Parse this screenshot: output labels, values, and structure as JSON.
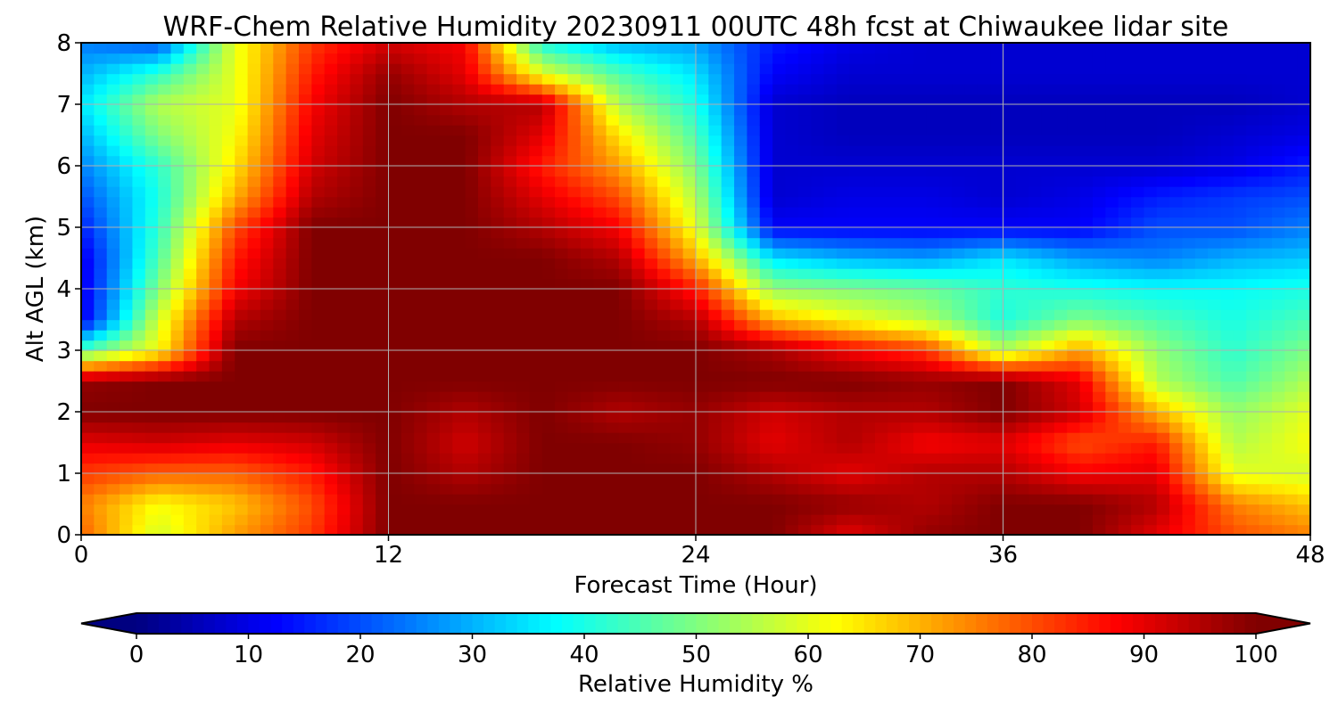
{
  "chart_data": {
    "type": "heatmap",
    "title": "WRF-Chem Relative Humidity 20230911 00UTC 48h fcst at Chiwaukee lidar site",
    "xlabel": "Forecast Time (Hour)",
    "ylabel": "Alt AGL (km)",
    "xlim": [
      0,
      48
    ],
    "ylim": [
      0,
      8
    ],
    "xticks": [
      "0",
      "12",
      "24",
      "36",
      "48"
    ],
    "yticks": [
      "0",
      "1",
      "2",
      "3",
      "4",
      "5",
      "6",
      "7",
      "8"
    ],
    "grid": true,
    "colormap": "jet",
    "colorbar": {
      "label": "Relative Humidity %",
      "ticks": [
        "0",
        "10",
        "20",
        "30",
        "40",
        "50",
        "60",
        "70",
        "80",
        "90",
        "100"
      ],
      "range": [
        0,
        100
      ],
      "extend": "both"
    },
    "x": [
      0,
      3,
      6,
      9,
      12,
      15,
      18,
      21,
      24,
      27,
      30,
      33,
      36,
      39,
      42,
      45,
      48
    ],
    "y": [
      0,
      0.5,
      1,
      1.5,
      2,
      2.5,
      3,
      3.5,
      4,
      4.5,
      5,
      5.5,
      6,
      6.5,
      7,
      7.5,
      8
    ],
    "z": [
      [
        78,
        58,
        72,
        82,
        100,
        100,
        100,
        100,
        100,
        100,
        90,
        98,
        100,
        100,
        90,
        80,
        75
      ],
      [
        75,
        62,
        68,
        80,
        100,
        100,
        100,
        100,
        100,
        100,
        98,
        95,
        100,
        100,
        95,
        75,
        68
      ],
      [
        82,
        78,
        78,
        85,
        100,
        95,
        100,
        100,
        100,
        95,
        90,
        95,
        95,
        88,
        90,
        60,
        58
      ],
      [
        90,
        92,
        90,
        92,
        100,
        92,
        100,
        100,
        98,
        90,
        95,
        88,
        90,
        80,
        85,
        55,
        62
      ],
      [
        100,
        100,
        100,
        100,
        100,
        95,
        100,
        95,
        98,
        92,
        95,
        95,
        100,
        92,
        70,
        52,
        60
      ],
      [
        98,
        100,
        100,
        100,
        100,
        100,
        100,
        100,
        100,
        100,
        100,
        98,
        100,
        90,
        55,
        45,
        55
      ],
      [
        45,
        62,
        100,
        100,
        100,
        100,
        100,
        100,
        100,
        96,
        88,
        82,
        55,
        72,
        52,
        42,
        50
      ],
      [
        10,
        58,
        95,
        100,
        100,
        100,
        100,
        100,
        95,
        70,
        62,
        55,
        40,
        50,
        45,
        40,
        45
      ],
      [
        10,
        50,
        88,
        100,
        100,
        100,
        100,
        100,
        85,
        52,
        50,
        48,
        42,
        40,
        38,
        38,
        40
      ],
      [
        10,
        45,
        85,
        100,
        100,
        100,
        100,
        95,
        70,
        35,
        30,
        28,
        35,
        28,
        25,
        30,
        32
      ],
      [
        15,
        42,
        80,
        100,
        100,
        100,
        95,
        88,
        60,
        12,
        12,
        12,
        12,
        12,
        20,
        20,
        25
      ],
      [
        20,
        40,
        70,
        95,
        100,
        100,
        90,
        80,
        55,
        8,
        10,
        10,
        8,
        10,
        15,
        18,
        20
      ],
      [
        25,
        42,
        65,
        92,
        100,
        100,
        85,
        72,
        50,
        8,
        8,
        8,
        8,
        8,
        8,
        10,
        15
      ],
      [
        30,
        50,
        62,
        90,
        100,
        100,
        90,
        65,
        45,
        8,
        6,
        6,
        6,
        6,
        6,
        8,
        10
      ],
      [
        35,
        55,
        60,
        88,
        100,
        95,
        95,
        55,
        40,
        8,
        6,
        6,
        6,
        6,
        6,
        6,
        8
      ],
      [
        30,
        42,
        60,
        85,
        98,
        90,
        60,
        45,
        35,
        12,
        8,
        8,
        8,
        8,
        8,
        8,
        8
      ],
      [
        25,
        20,
        60,
        82,
        92,
        88,
        40,
        30,
        28,
        15,
        10,
        8,
        8,
        8,
        8,
        8,
        8
      ]
    ]
  }
}
